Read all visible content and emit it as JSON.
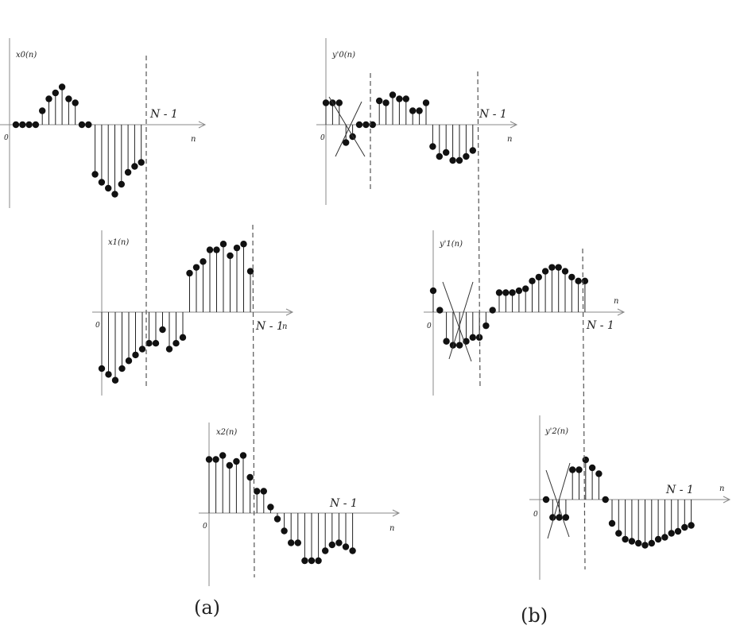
{
  "captions": {
    "a": "(a)",
    "b": "(b)"
  },
  "origin_label": "0",
  "n_label": "n",
  "end_label": "N - 1",
  "panels": [
    {
      "id": "x0",
      "label": "x0(n)",
      "values": [
        0,
        0,
        0,
        0,
        0.35,
        0.65,
        0.8,
        0.95,
        0.65,
        0.55,
        0,
        0,
        -1.25,
        -1.45,
        -1.6,
        -1.75,
        -1.5,
        -1.2,
        -1.05,
        -0.95
      ]
    },
    {
      "id": "x1",
      "label": "x1(n)",
      "values": [
        -1.45,
        -1.6,
        -1.75,
        -1.45,
        -1.25,
        -1.1,
        -0.95,
        -0.8,
        -0.8,
        -0.45,
        -0.95,
        -0.8,
        -0.65,
        1.0,
        1.15,
        1.3,
        1.6,
        1.6,
        1.75,
        1.45,
        1.65,
        1.75,
        1.05
      ]
    },
    {
      "id": "x2",
      "label": "x2(n)",
      "values": [
        1.35,
        1.35,
        1.45,
        1.2,
        1.3,
        1.45,
        0.9,
        0.55,
        0.55,
        0.15,
        -0.15,
        -0.45,
        -0.75,
        -0.75,
        -1.2,
        -1.2,
        -1.2,
        -0.95,
        -0.8,
        -0.75,
        -0.85,
        -0.95
      ]
    },
    {
      "id": "y0",
      "label": "y'0(n)",
      "values": [
        0.55,
        0.55,
        0.55,
        -0.45,
        -0.3,
        0,
        0,
        0,
        0.6,
        0.55,
        0.75,
        0.65,
        0.65,
        0.35,
        0.35,
        0.55,
        -0.55,
        -0.8,
        -0.7,
        -0.9,
        -0.9,
        -0.8,
        -0.65
      ]
    },
    {
      "id": "y1",
      "label": "y'1(n)",
      "values": [
        0.55,
        0.05,
        -0.75,
        -0.85,
        -0.85,
        -0.75,
        -0.65,
        -0.65,
        -0.35,
        0.05,
        0.5,
        0.5,
        0.5,
        0.55,
        0.6,
        0.8,
        0.9,
        1.05,
        1.15,
        1.15,
        1.05,
        0.9,
        0.8,
        0.8
      ]
    },
    {
      "id": "y2",
      "label": "y'2(n)",
      "values": [
        0,
        -0.45,
        -0.45,
        -0.45,
        0.75,
        0.75,
        1.0,
        0.8,
        0.65,
        0,
        -0.6,
        -0.85,
        -1.0,
        -1.05,
        -1.1,
        -1.15,
        -1.1,
        -1.0,
        -0.95,
        -0.85,
        -0.8,
        -0.7,
        -0.65
      ]
    }
  ]
}
